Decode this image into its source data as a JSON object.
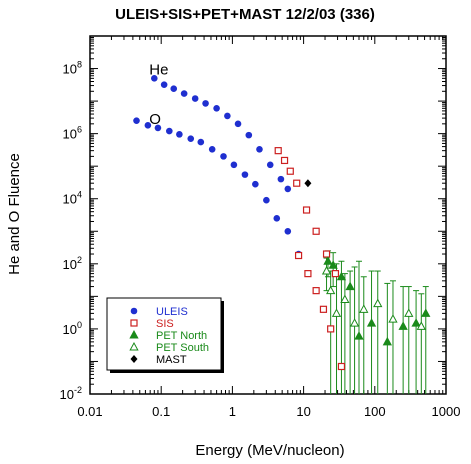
{
  "chart_data": {
    "type": "scatter",
    "title": "ULEIS+SIS+PET+MAST 12/2/03 (336)",
    "xlabel": "Energy (MeV/nucleon)",
    "ylabel": "He and O Fluence",
    "xscale": "log",
    "yscale": "log",
    "xlim": [
      0.01,
      1000
    ],
    "ylim": [
      0.01,
      1000000000
    ],
    "xticks": [
      {
        "value": 0.01,
        "label": "0.01"
      },
      {
        "value": 0.1,
        "label": "0.1"
      },
      {
        "value": 1,
        "label": "1"
      },
      {
        "value": 10,
        "label": "10"
      },
      {
        "value": 100,
        "label": "100"
      },
      {
        "value": 1000,
        "label": "1000"
      }
    ],
    "yticks": [
      {
        "value": 0.01,
        "base": "10",
        "exp": "-2"
      },
      {
        "value": 1,
        "base": "10",
        "exp": "0"
      },
      {
        "value": 100,
        "base": "10",
        "exp": "2"
      },
      {
        "value": 10000,
        "base": "10",
        "exp": "4"
      },
      {
        "value": 1000000,
        "base": "10",
        "exp": "6"
      },
      {
        "value": 100000000,
        "base": "10",
        "exp": "8"
      }
    ],
    "annotations": [
      {
        "text": "He",
        "x": 0.068,
        "y": 100000000
      },
      {
        "text": "O",
        "x": 0.068,
        "y": 3000000
      }
    ],
    "legend_position": "bottom-left",
    "series": [
      {
        "name": "ULEIS",
        "marker": "circle",
        "color": "#1f2fd0",
        "label_color": "#1f2fd0",
        "points": [
          {
            "x": 0.08,
            "y": 50000000
          },
          {
            "x": 0.11,
            "y": 32000000
          },
          {
            "x": 0.15,
            "y": 24000000
          },
          {
            "x": 0.21,
            "y": 17000000
          },
          {
            "x": 0.3,
            "y": 12000000
          },
          {
            "x": 0.42,
            "y": 8500000
          },
          {
            "x": 0.6,
            "y": 6000000
          },
          {
            "x": 0.85,
            "y": 3500000
          },
          {
            "x": 1.2,
            "y": 2000000
          },
          {
            "x": 1.7,
            "y": 900000
          },
          {
            "x": 2.4,
            "y": 330000
          },
          {
            "x": 3.4,
            "y": 110000
          },
          {
            "x": 4.8,
            "y": 40000
          },
          {
            "x": 6.0,
            "y": 20000
          },
          {
            "x": 0.045,
            "y": 2500000
          },
          {
            "x": 0.065,
            "y": 1800000
          },
          {
            "x": 0.09,
            "y": 1500000
          },
          {
            "x": 0.13,
            "y": 1200000
          },
          {
            "x": 0.18,
            "y": 950000
          },
          {
            "x": 0.26,
            "y": 700000
          },
          {
            "x": 0.36,
            "y": 550000
          },
          {
            "x": 0.52,
            "y": 330000
          },
          {
            "x": 0.75,
            "y": 200000
          },
          {
            "x": 1.05,
            "y": 110000
          },
          {
            "x": 1.5,
            "y": 55000
          },
          {
            "x": 2.1,
            "y": 28000
          },
          {
            "x": 3.0,
            "y": 9000
          },
          {
            "x": 4.2,
            "y": 2500
          },
          {
            "x": 6.0,
            "y": 1000
          },
          {
            "x": 8.5,
            "y": 200
          }
        ]
      },
      {
        "name": "SIS",
        "marker": "square-open",
        "color": "#cc2020",
        "label_color": "#cc2020",
        "points": [
          {
            "x": 4.4,
            "y": 300000
          },
          {
            "x": 5.4,
            "y": 150000
          },
          {
            "x": 6.5,
            "y": 70000
          },
          {
            "x": 8.0,
            "y": 30000
          },
          {
            "x": 11.0,
            "y": 4500
          },
          {
            "x": 15.0,
            "y": 1000
          },
          {
            "x": 21.0,
            "y": 200
          },
          {
            "x": 28.0,
            "y": 50
          },
          {
            "x": 8.5,
            "y": 180
          },
          {
            "x": 11.5,
            "y": 50
          },
          {
            "x": 15.0,
            "y": 15
          },
          {
            "x": 19.0,
            "y": 4
          },
          {
            "x": 24.0,
            "y": 1
          },
          {
            "x": 34.0,
            "y": 0.07
          }
        ]
      },
      {
        "name": "PET North",
        "marker": "triangle-filled",
        "color": "#1a8a1a",
        "label_color": "#1a8a1a",
        "points": [
          {
            "x": 22,
            "y": 120,
            "ylo": 40,
            "yhi": 250
          },
          {
            "x": 26,
            "y": 90,
            "ylo": 20,
            "yhi": 220
          },
          {
            "x": 34,
            "y": 40,
            "ylo": 0.01,
            "yhi": 120
          },
          {
            "x": 45,
            "y": 20,
            "ylo": 0.01,
            "yhi": 60
          },
          {
            "x": 60,
            "y": 0.6,
            "ylo": 0.01,
            "yhi": 120
          },
          {
            "x": 90,
            "y": 1.5,
            "ylo": 0.01,
            "yhi": 60
          },
          {
            "x": 150,
            "y": 0.4,
            "ylo": 0.01,
            "yhi": 25
          },
          {
            "x": 250,
            "y": 1.2,
            "ylo": 0.01,
            "yhi": 20
          },
          {
            "x": 380,
            "y": 1.5,
            "ylo": 0.01,
            "yhi": 15
          },
          {
            "x": 520,
            "y": 3,
            "ylo": 0.01,
            "yhi": 20
          }
        ]
      },
      {
        "name": "PET South",
        "marker": "triangle-open",
        "color": "#1a8a1a",
        "label_color": "#1a8a1a",
        "points": [
          {
            "x": 21,
            "y": 60,
            "ylo": 15,
            "yhi": 150
          },
          {
            "x": 24,
            "y": 15,
            "ylo": 0.01,
            "yhi": 60
          },
          {
            "x": 29,
            "y": 3,
            "ylo": 0.01,
            "yhi": 100
          },
          {
            "x": 38,
            "y": 8,
            "ylo": 0.01,
            "yhi": 50
          },
          {
            "x": 52,
            "y": 1.5,
            "ylo": 0.01,
            "yhi": 80
          },
          {
            "x": 70,
            "y": 4,
            "ylo": 0.01,
            "yhi": 40
          },
          {
            "x": 110,
            "y": 6,
            "ylo": 0.01,
            "yhi": 60
          },
          {
            "x": 180,
            "y": 2,
            "ylo": 0.01,
            "yhi": 30
          },
          {
            "x": 300,
            "y": 3,
            "ylo": 0.01,
            "yhi": 20
          },
          {
            "x": 450,
            "y": 1.2,
            "ylo": 0.01,
            "yhi": 12
          }
        ]
      },
      {
        "name": "MAST",
        "marker": "diamond",
        "color": "#000000",
        "label_color": "#000000",
        "points": [
          {
            "x": 11.5,
            "y": 30000
          }
        ]
      }
    ]
  }
}
